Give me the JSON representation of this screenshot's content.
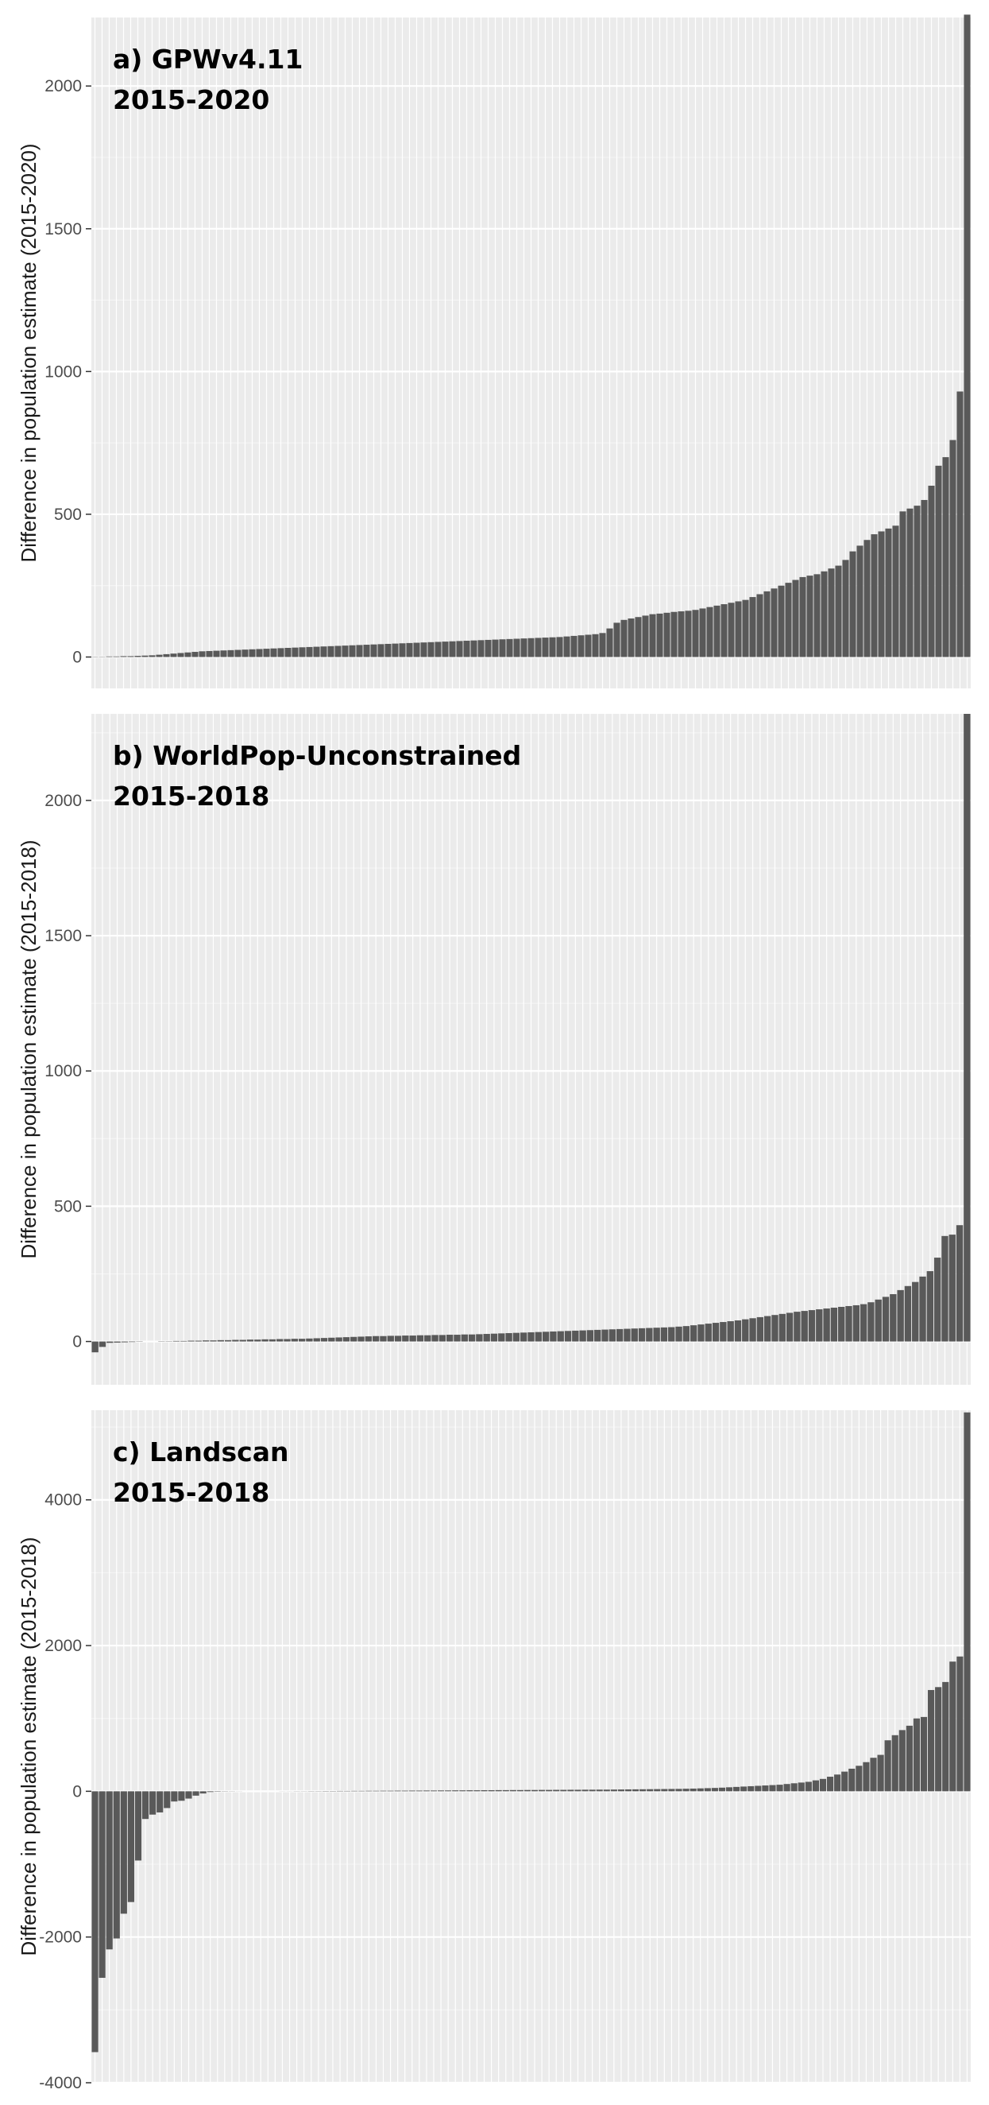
{
  "colors": {
    "panel_background": "#ebebeb",
    "grid_major": "#ffffff",
    "bar_fill": "#595959",
    "text": "#000000",
    "tick_text": "#4d4d4d"
  },
  "chart_data": [
    {
      "type": "bar",
      "title": "a) GPWv4.11",
      "subtitle": "2015-2020",
      "ylabel": "Difference in population estimate (2015-2020)",
      "xlabel": "",
      "ylim": [
        -110,
        2240
      ],
      "yticks": [
        0,
        500,
        1000,
        1500,
        2000
      ],
      "yticklabels": [
        "0",
        "500",
        "1000",
        "1500",
        "2000"
      ],
      "grid": true,
      "legend": "none",
      "values": [
        1,
        1,
        2,
        2,
        3,
        3,
        4,
        5,
        6,
        8,
        10,
        12,
        14,
        16,
        18,
        20,
        21,
        22,
        23,
        24,
        25,
        26,
        27,
        28,
        29,
        30,
        31,
        32,
        33,
        34,
        35,
        36,
        37,
        38,
        39,
        40,
        41,
        42,
        43,
        44,
        45,
        46,
        47,
        48,
        49,
        50,
        51,
        52,
        53,
        54,
        55,
        56,
        57,
        58,
        59,
        60,
        61,
        62,
        63,
        64,
        65,
        66,
        67,
        68,
        69,
        70,
        72,
        74,
        76,
        78,
        80,
        84,
        100,
        120,
        130,
        135,
        140,
        145,
        150,
        152,
        155,
        158,
        160,
        162,
        165,
        170,
        175,
        180,
        185,
        190,
        195,
        200,
        210,
        220,
        230,
        240,
        250,
        260,
        270,
        280,
        285,
        290,
        300,
        310,
        320,
        340,
        370,
        390,
        410,
        430,
        440,
        450,
        460,
        510,
        520,
        530,
        550,
        600,
        670,
        700,
        760,
        930,
        2250
      ]
    },
    {
      "type": "bar",
      "title": "b) WorldPop-Unconstrained",
      "subtitle": "2015-2018",
      "ylabel": "Difference in population estimate (2015-2018)",
      "xlabel": "",
      "ylim": [
        -160,
        2320
      ],
      "yticks": [
        0,
        500,
        1000,
        1500,
        2000
      ],
      "yticklabels": [
        "0",
        "500",
        "1000",
        "1500",
        "2000"
      ],
      "grid": true,
      "legend": "none",
      "values": [
        -40,
        -20,
        -5,
        -4,
        -3,
        -2,
        -1,
        0,
        0,
        1,
        1,
        2,
        2,
        3,
        3,
        4,
        4,
        5,
        5,
        6,
        6,
        7,
        7,
        8,
        8,
        9,
        9,
        10,
        10,
        11,
        12,
        13,
        14,
        15,
        16,
        17,
        18,
        19,
        20,
        20,
        21,
        21,
        22,
        22,
        23,
        23,
        24,
        24,
        25,
        25,
        26,
        26,
        27,
        28,
        29,
        30,
        31,
        32,
        33,
        34,
        35,
        36,
        37,
        38,
        39,
        40,
        41,
        42,
        43,
        44,
        45,
        46,
        47,
        48,
        49,
        50,
        51,
        52,
        53,
        55,
        57,
        60,
        63,
        66,
        69,
        72,
        75,
        78,
        82,
        86,
        90,
        94,
        98,
        102,
        106,
        110,
        113,
        116,
        119,
        122,
        125,
        128,
        131,
        134,
        138,
        145,
        155,
        165,
        175,
        190,
        205,
        220,
        240,
        260,
        310,
        390,
        395,
        430,
        2320
      ]
    },
    {
      "type": "bar",
      "title": "c) Landscan",
      "subtitle": "2015-2018",
      "ylabel": "Difference in population estimate (2015-2018)",
      "xlabel": "",
      "ylim": [
        -4000,
        5230
      ],
      "yticks": [
        -4000,
        -2000,
        0,
        2000,
        4000
      ],
      "yticklabels": [
        "-4000",
        "-2000",
        "0",
        "2000",
        "4000"
      ],
      "grid": true,
      "legend": "none",
      "values": [
        -3580,
        -2560,
        -2170,
        -2020,
        -1680,
        -1520,
        -950,
        -380,
        -320,
        -290,
        -230,
        -140,
        -130,
        -100,
        -60,
        -30,
        -10,
        -5,
        -3,
        -2,
        -1,
        0,
        0,
        0,
        0,
        0,
        1,
        1,
        2,
        2,
        3,
        3,
        4,
        4,
        5,
        5,
        6,
        6,
        7,
        7,
        8,
        8,
        9,
        9,
        10,
        10,
        11,
        11,
        12,
        12,
        13,
        13,
        14,
        14,
        15,
        15,
        16,
        16,
        17,
        17,
        18,
        18,
        19,
        19,
        20,
        20,
        21,
        21,
        22,
        22,
        23,
        23,
        24,
        25,
        26,
        27,
        28,
        29,
        30,
        31,
        32,
        33,
        35,
        37,
        40,
        43,
        46,
        50,
        55,
        60,
        65,
        70,
        75,
        80,
        85,
        90,
        100,
        110,
        120,
        130,
        150,
        170,
        200,
        230,
        270,
        310,
        350,
        400,
        460,
        500,
        700,
        770,
        840,
        900,
        1000,
        1020,
        1390,
        1430,
        1500,
        1780,
        1850,
        5200
      ]
    }
  ]
}
